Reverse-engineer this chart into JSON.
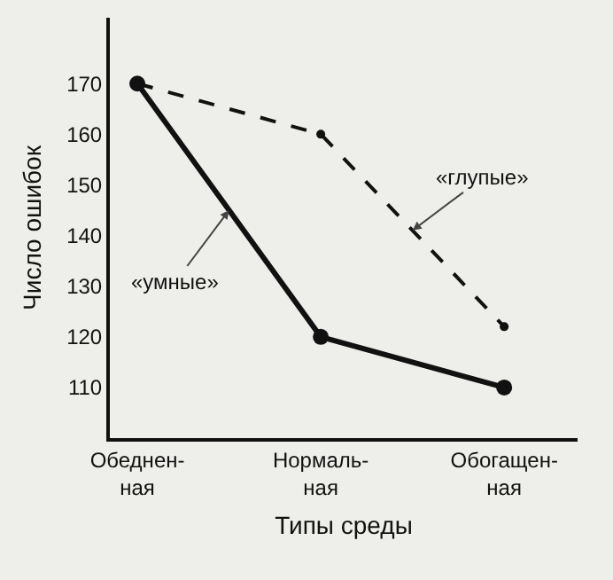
{
  "chart_data": {
    "type": "line",
    "xlabel": "Типы среды",
    "ylabel": "Число ошибок",
    "categories": [
      "Обеднен-\nная",
      "Нормаль-\nная",
      "Обогащен-\nная"
    ],
    "series": [
      {
        "name": "«умные»",
        "color": "#111111",
        "values": [
          170,
          120,
          110
        ],
        "line_style": "solid",
        "marker": "circle"
      },
      {
        "name": "«глупые»",
        "color": "#111111",
        "values": [
          170,
          160,
          122
        ],
        "line_style": "dashed",
        "marker": "circle"
      }
    ],
    "ylim": [
      100,
      183
    ],
    "yticks": [
      110,
      120,
      130,
      140,
      150,
      160,
      170
    ],
    "grid": false,
    "legend": false
  }
}
